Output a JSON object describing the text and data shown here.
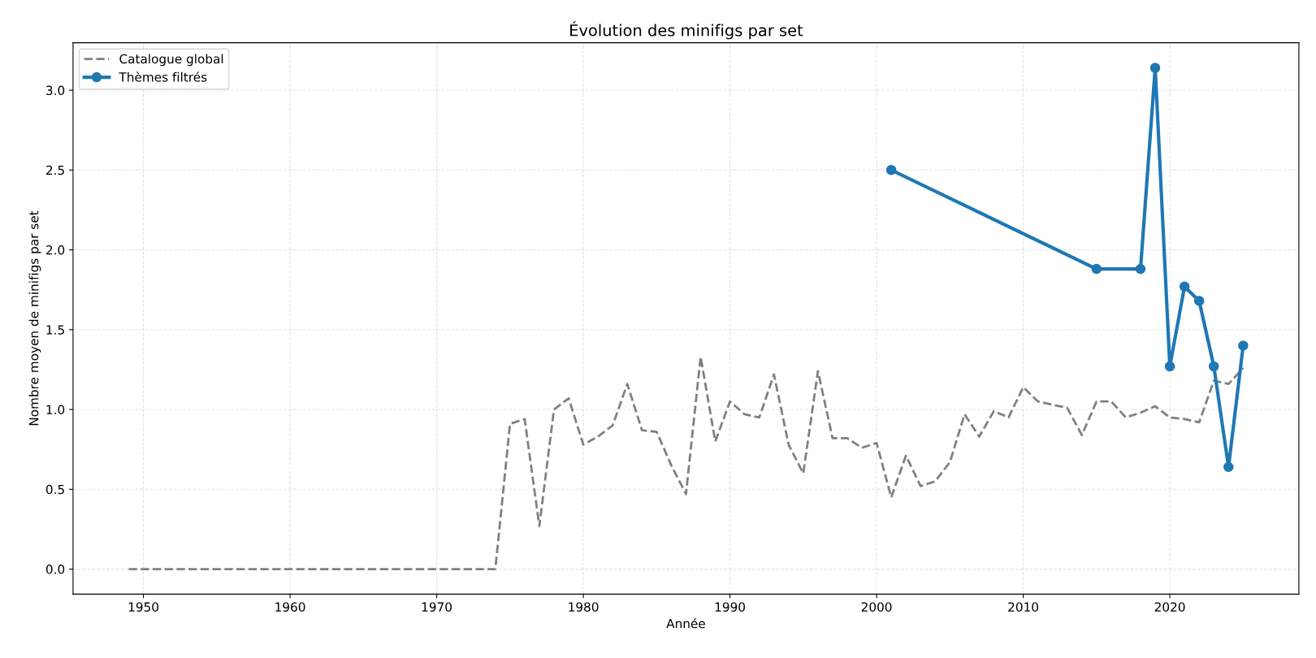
{
  "chart_data": {
    "type": "line",
    "title": "Évolution des minifigs par set",
    "xlabel": "Année",
    "ylabel": "Nombre moyen de minifigs par set",
    "xlim": [
      1945.2,
      2028.8
    ],
    "xticks": [
      1950,
      1960,
      1970,
      1980,
      1990,
      2000,
      2010,
      2020
    ],
    "ylim": [
      -0.157,
      3.297
    ],
    "yticks": [
      {
        "value": 0,
        "label": "0.0"
      },
      {
        "value": 0.5,
        "label": "0.5"
      },
      {
        "value": 1,
        "label": "1.0"
      },
      {
        "value": 1.5,
        "label": "1.5"
      },
      {
        "value": 2,
        "label": "2.0"
      },
      {
        "value": 2.5,
        "label": "2.5"
      },
      {
        "value": 3,
        "label": "3.0"
      }
    ],
    "grid": true,
    "legend": "top left",
    "series": [
      {
        "name": "Catalogue global",
        "color": "#808080",
        "line_style": "dashed",
        "marker": "none",
        "x": [
          1949,
          1950,
          1951,
          1952,
          1953,
          1954,
          1955,
          1956,
          1957,
          1958,
          1959,
          1960,
          1961,
          1962,
          1963,
          1964,
          1965,
          1966,
          1967,
          1968,
          1969,
          1970,
          1971,
          1972,
          1973,
          1974,
          1975,
          1976,
          1977,
          1978,
          1979,
          1980,
          1981,
          1982,
          1983,
          1984,
          1985,
          1986,
          1987,
          1988,
          1989,
          1990,
          1991,
          1992,
          1993,
          1994,
          1995,
          1996,
          1997,
          1998,
          1999,
          2000,
          2001,
          2002,
          2003,
          2004,
          2005,
          2006,
          2007,
          2008,
          2009,
          2010,
          2011,
          2012,
          2013,
          2014,
          2015,
          2016,
          2017,
          2018,
          2019,
          2020,
          2021,
          2022,
          2023,
          2024,
          2025
        ],
        "values": [
          0,
          0,
          0,
          0,
          0,
          0,
          0,
          0,
          0,
          0,
          0,
          0,
          0,
          0,
          0,
          0,
          0,
          0,
          0,
          0,
          0,
          0,
          0,
          0,
          0,
          0,
          0.91,
          0.94,
          0.27,
          1.0,
          1.07,
          0.78,
          0.83,
          0.9,
          1.16,
          0.87,
          0.86,
          0.65,
          0.47,
          1.33,
          0.8,
          1.05,
          0.97,
          0.95,
          1.22,
          0.78,
          0.6,
          1.24,
          0.82,
          0.82,
          0.76,
          0.79,
          0.45,
          0.71,
          0.52,
          0.55,
          0.67,
          0.97,
          0.83,
          0.99,
          0.95,
          1.14,
          1.05,
          1.03,
          1.01,
          0.84,
          1.05,
          1.05,
          0.95,
          0.98,
          1.02,
          0.95,
          0.94,
          0.92,
          1.18,
          1.16,
          1.26
        ]
      },
      {
        "name": "Thèmes filtrés",
        "color": "#1f77b4",
        "line_style": "solid",
        "marker": "circle",
        "x": [
          2001,
          2015,
          2018,
          2019,
          2020,
          2021,
          2022,
          2023,
          2024,
          2025
        ],
        "values": [
          2.5,
          1.88,
          1.88,
          3.14,
          1.27,
          1.77,
          1.68,
          1.27,
          0.64,
          1.4
        ]
      }
    ]
  }
}
